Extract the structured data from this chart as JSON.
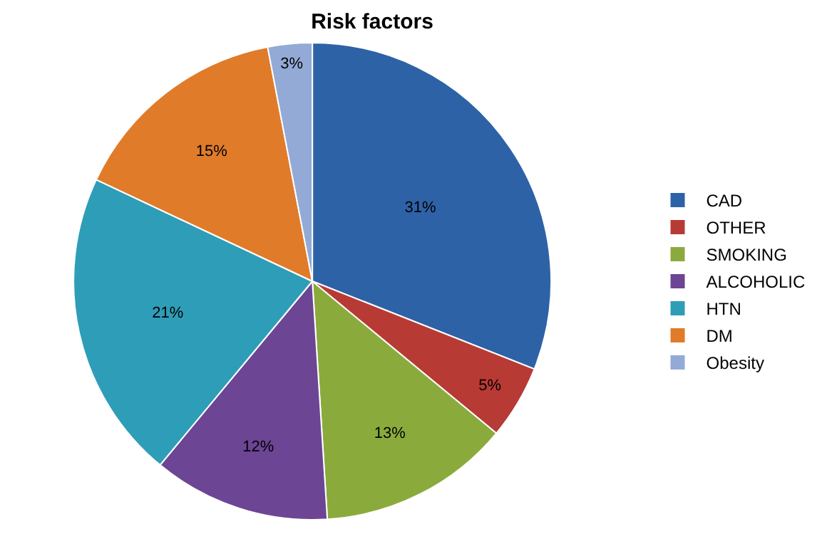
{
  "chart_data": {
    "type": "pie",
    "title": "Risk factors",
    "categories": [
      "CAD",
      "OTHER",
      "SMOKING",
      "ALCOHOLIC",
      "HTN",
      "DM",
      "Obesity"
    ],
    "values": [
      31,
      5,
      13,
      12,
      21,
      15,
      3
    ],
    "colors": [
      "#2e62a6",
      "#b83a35",
      "#8aab3c",
      "#6c4595",
      "#2e9db8",
      "#e07b2a",
      "#93aad6"
    ],
    "value_labels": [
      "31%",
      "5%",
      "13%",
      "12%",
      "21%",
      "15%",
      "3%"
    ],
    "legend": "right"
  }
}
